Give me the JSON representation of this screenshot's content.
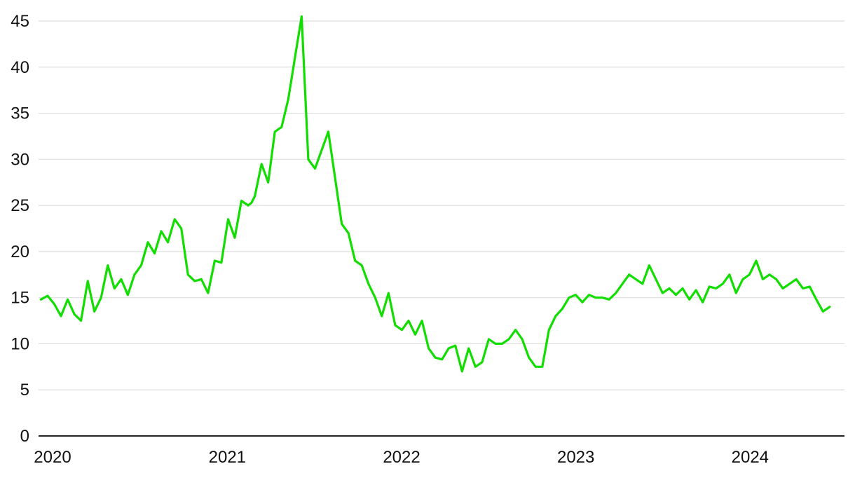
{
  "chart_data": {
    "type": "line",
    "title": "",
    "xlabel": "",
    "ylabel": "",
    "x_ticks": [
      "2020",
      "2021",
      "2022",
      "2023",
      "2024"
    ],
    "y_ticks": [
      "0",
      "5",
      "10",
      "15",
      "20",
      "25",
      "30",
      "35",
      "40",
      "45"
    ],
    "xlim": [
      "2020-01-01",
      "2024-08-15"
    ],
    "ylim": [
      0,
      45
    ],
    "grid": "horizontal",
    "legend": "none",
    "colors": {
      "line": "#11dd00",
      "grid": "#dddddd",
      "axis": "#222222",
      "text": "#111111"
    },
    "series": [
      {
        "x": [
          "2020-01-06",
          "2020-01-20",
          "2020-02-03",
          "2020-02-17",
          "2020-03-02",
          "2020-03-16",
          "2020-03-30",
          "2020-04-13",
          "2020-04-27",
          "2020-05-11",
          "2020-05-25",
          "2020-06-08",
          "2020-06-22",
          "2020-07-06",
          "2020-07-20",
          "2020-08-03",
          "2020-08-17",
          "2020-08-31",
          "2020-09-14",
          "2020-09-28",
          "2020-10-12",
          "2020-10-26",
          "2020-11-09",
          "2020-11-23",
          "2020-12-07",
          "2020-12-21",
          "2021-01-04",
          "2021-01-18",
          "2021-02-01",
          "2021-02-15",
          "2021-03-01",
          "2021-03-15",
          "2021-03-22",
          "2021-03-29",
          "2021-04-12",
          "2021-04-26",
          "2021-05-10",
          "2021-05-24",
          "2021-06-07",
          "2021-06-21",
          "2021-07-05",
          "2021-07-19",
          "2021-08-02",
          "2021-08-16",
          "2021-08-30",
          "2021-09-13",
          "2021-09-27",
          "2021-10-11",
          "2021-10-25",
          "2021-11-08",
          "2021-11-22",
          "2021-12-06",
          "2021-12-20",
          "2022-01-03",
          "2022-01-17",
          "2022-01-31",
          "2022-02-14",
          "2022-02-28",
          "2022-03-14",
          "2022-03-28",
          "2022-04-11",
          "2022-04-25",
          "2022-05-09",
          "2022-05-23",
          "2022-06-06",
          "2022-06-20",
          "2022-07-04",
          "2022-07-18",
          "2022-08-01",
          "2022-08-15",
          "2022-08-29",
          "2022-09-12",
          "2022-09-26",
          "2022-10-10",
          "2022-10-24",
          "2022-11-07",
          "2022-11-21",
          "2022-12-05",
          "2022-12-19",
          "2023-01-02",
          "2023-01-16",
          "2023-01-30",
          "2023-02-13",
          "2023-02-27",
          "2023-03-13",
          "2023-03-27",
          "2023-04-10",
          "2023-04-24",
          "2023-05-08",
          "2023-05-22",
          "2023-06-05",
          "2023-06-19",
          "2023-07-03",
          "2023-07-17",
          "2023-07-31",
          "2023-08-14",
          "2023-08-28",
          "2023-09-11",
          "2023-09-25",
          "2023-10-09",
          "2023-10-23",
          "2023-11-06",
          "2023-11-20",
          "2023-12-04",
          "2023-12-18",
          "2024-01-01",
          "2024-01-15",
          "2024-01-29",
          "2024-02-12",
          "2024-02-26",
          "2024-03-11",
          "2024-03-25",
          "2024-04-08",
          "2024-04-22",
          "2024-05-06",
          "2024-05-20",
          "2024-06-03",
          "2024-06-17",
          "2024-07-01",
          "2024-07-15"
        ],
        "values": [
          14.8,
          15.2,
          14.3,
          13.0,
          14.8,
          13.2,
          12.5,
          16.8,
          13.5,
          15.0,
          18.5,
          16.0,
          17.0,
          15.3,
          17.5,
          18.5,
          21.0,
          19.8,
          22.2,
          21.0,
          23.5,
          22.5,
          17.5,
          16.8,
          17.0,
          15.5,
          19.0,
          18.8,
          23.5,
          21.5,
          25.5,
          25.0,
          25.3,
          26.0,
          29.5,
          27.5,
          33.0,
          33.5,
          36.5,
          41.0,
          45.5,
          30.0,
          29.0,
          31.0,
          33.0,
          28.0,
          23.0,
          22.0,
          19.0,
          18.5,
          16.5,
          15.0,
          13.0,
          15.5,
          12.0,
          11.5,
          12.5,
          11.0,
          12.5,
          9.5,
          8.5,
          8.3,
          9.5,
          9.8,
          7.0,
          9.5,
          7.5,
          8.0,
          10.5,
          10.0,
          10.0,
          10.5,
          11.5,
          10.5,
          8.5,
          7.5,
          7.5,
          11.5,
          13.0,
          13.8,
          15.0,
          15.3,
          14.5,
          15.3,
          15.0,
          15.0,
          14.8,
          15.5,
          16.5,
          17.5,
          17.0,
          16.5,
          18.5,
          17.0,
          15.5,
          16.0,
          15.3,
          16.0,
          14.8,
          15.8,
          14.5,
          16.2,
          16.0,
          16.5,
          17.5,
          15.5,
          17.0,
          17.5,
          19.0,
          17.0,
          17.5,
          17.0,
          16.0,
          16.5,
          17.0,
          16.0,
          16.2,
          14.8,
          13.5,
          14.0
        ]
      }
    ]
  }
}
